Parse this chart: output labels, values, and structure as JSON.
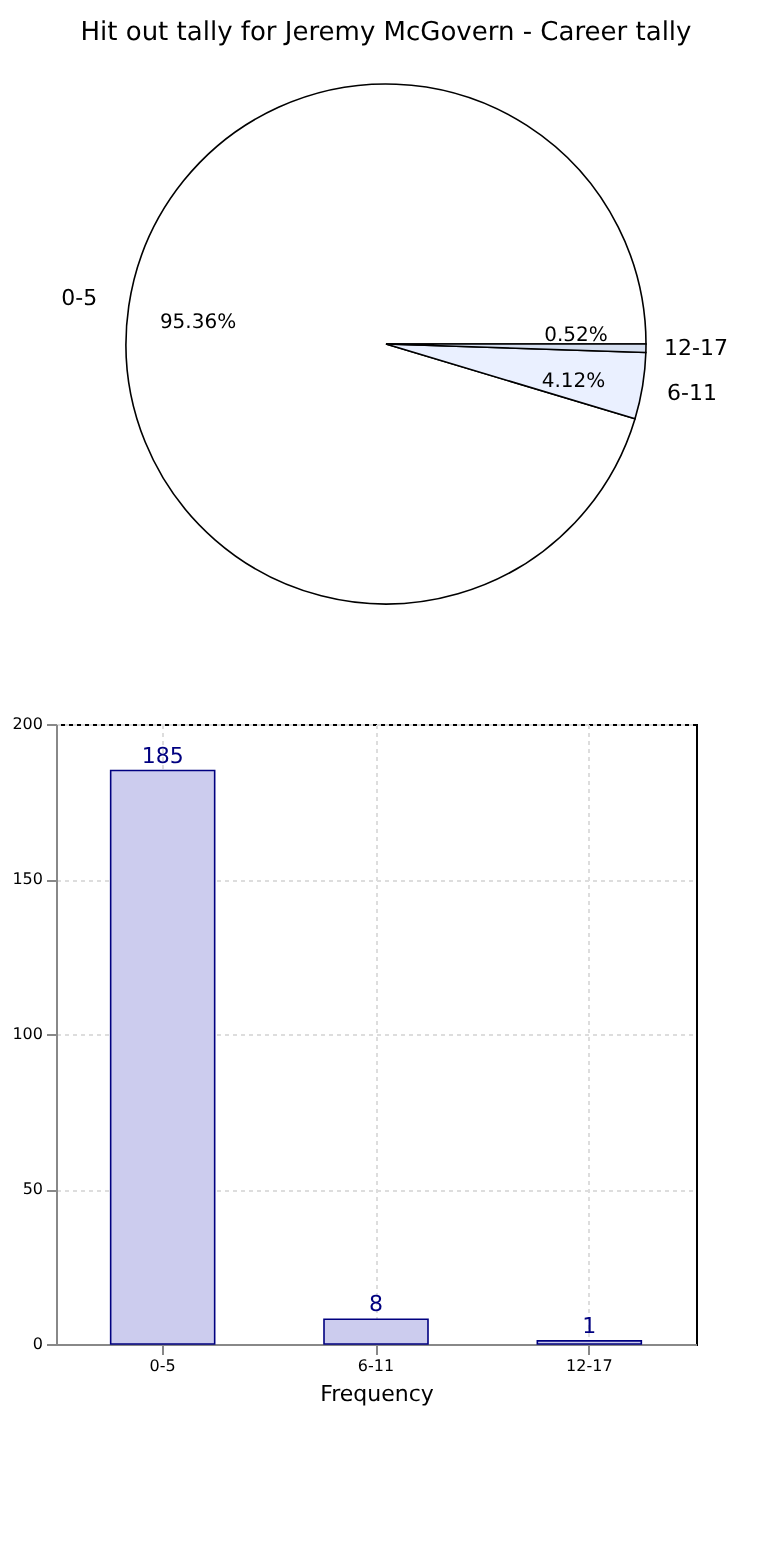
{
  "chart_data": [
    {
      "type": "pie",
      "title": "Hit out tally for Jeremy McGovern - Career tally",
      "categories": [
        "0-5",
        "6-11",
        "12-17"
      ],
      "values": [
        95.36,
        4.12,
        0.52
      ],
      "colors": [
        "#ffffff",
        "#eaf0ff",
        "#d6dff0"
      ],
      "value_labels": [
        "95.36%",
        "4.12%",
        "0.52%"
      ],
      "legend": false
    },
    {
      "type": "bar",
      "categories": [
        "0-5",
        "6-11",
        "12-17"
      ],
      "values": [
        185,
        8,
        1
      ],
      "color": "#ccccee",
      "xlabel": "Frequency",
      "ylim": [
        0,
        200
      ],
      "yticks": [
        0,
        50,
        100,
        150,
        200
      ],
      "grid": true,
      "data_labels": true
    }
  ]
}
